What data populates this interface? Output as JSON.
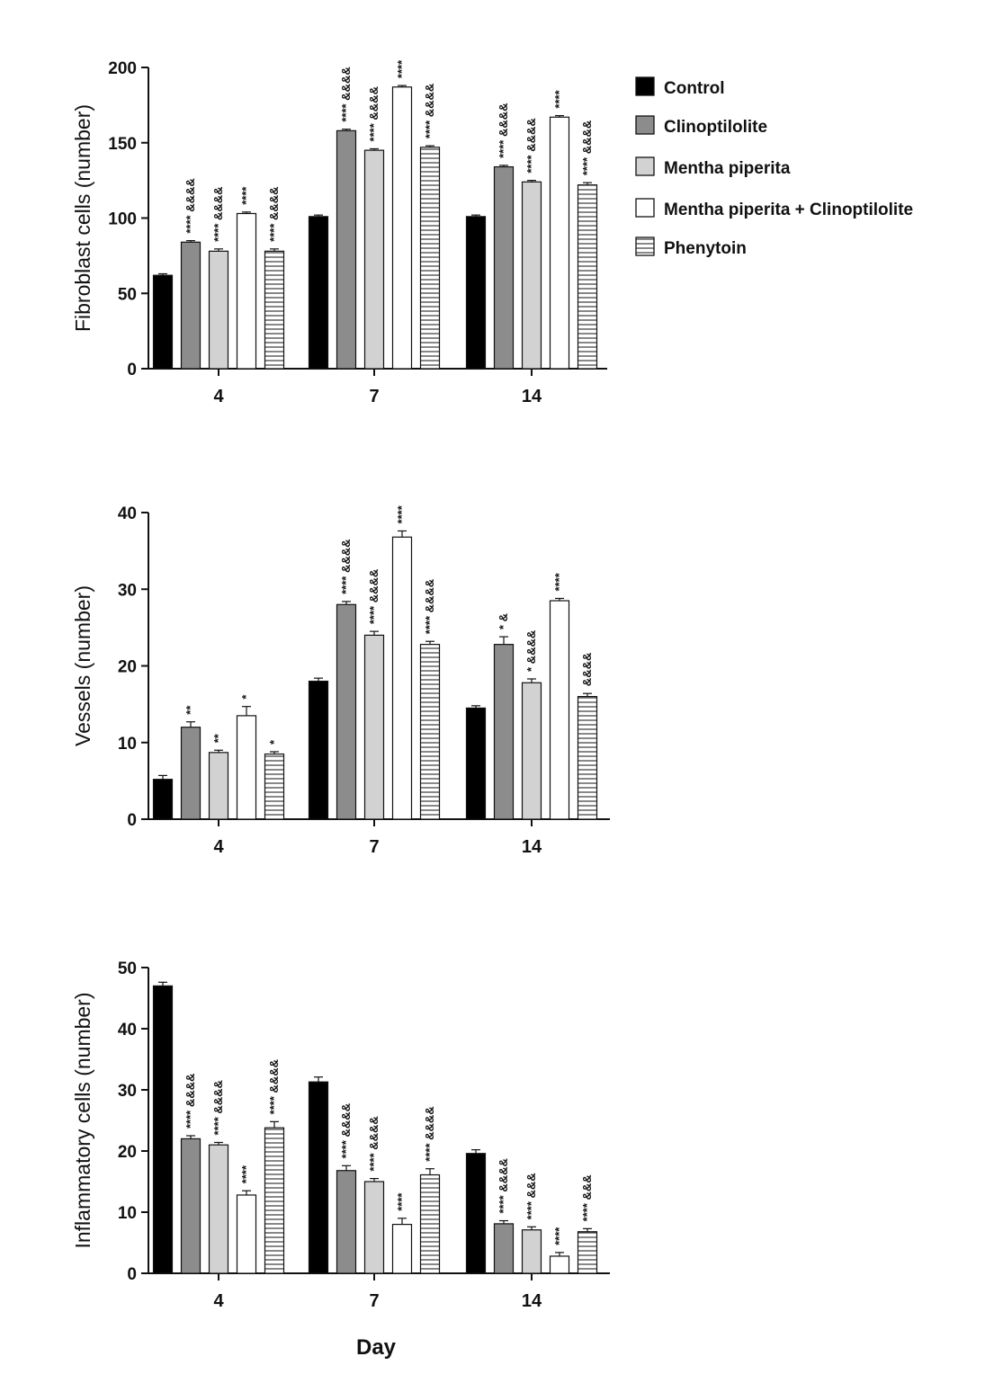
{
  "legend": [
    {
      "name": "Control",
      "fill": "#000000",
      "pattern": "solid"
    },
    {
      "name": "Clinoptilolite",
      "fill": "#8c8c8c",
      "pattern": "solid"
    },
    {
      "name": "Mentha piperita",
      "fill": "#d2d2d2",
      "pattern": "solid"
    },
    {
      "name": "Mentha piperita + Clinoptilolite",
      "fill": "#ffffff",
      "pattern": "solid"
    },
    {
      "name": "Phenytoin",
      "fill": "#ffffff",
      "pattern": "hlines"
    }
  ],
  "x_axis_title": "Day",
  "chart_data": [
    {
      "type": "bar",
      "ylabel": "Fibroblast cells (number)",
      "xlabel": "",
      "categories": [
        "4",
        "7",
        "14"
      ],
      "ylim": [
        0,
        200
      ],
      "yticks": [
        0,
        50,
        100,
        150,
        200
      ],
      "series": [
        {
          "name": "Control",
          "values": [
            62,
            101,
            101
          ],
          "errors": [
            1,
            1,
            1
          ]
        },
        {
          "name": "Clinoptilolite",
          "values": [
            84,
            158,
            134
          ],
          "errors": [
            1,
            1,
            1
          ]
        },
        {
          "name": "Mentha piperita",
          "values": [
            78,
            145,
            124
          ],
          "errors": [
            1.5,
            1,
            1
          ]
        },
        {
          "name": "Mentha piperita + Clinoptilolite",
          "values": [
            103,
            187,
            167
          ],
          "errors": [
            1,
            1,
            1
          ]
        },
        {
          "name": "Phenytoin",
          "values": [
            78,
            147,
            122
          ],
          "errors": [
            1.5,
            1,
            1.5
          ]
        }
      ],
      "annotations": [
        [
          "",
          "",
          ""
        ],
        [
          "****  &&&&",
          "****  &&&&",
          "****  &&&&"
        ],
        [
          "****  &&&&",
          "****  &&&&",
          "****  &&&&"
        ],
        [
          "****",
          "****",
          "****"
        ],
        [
          "****  &&&&",
          "****  &&&&",
          "****  &&&&"
        ]
      ]
    },
    {
      "type": "bar",
      "ylabel": "Vessels (number)",
      "xlabel": "",
      "categories": [
        "4",
        "7",
        "14"
      ],
      "ylim": [
        0,
        40
      ],
      "yticks": [
        0,
        10,
        20,
        30,
        40
      ],
      "series": [
        {
          "name": "Control",
          "values": [
            5.2,
            18,
            14.5
          ],
          "errors": [
            0.5,
            0.4,
            0.3
          ]
        },
        {
          "name": "Clinoptilolite",
          "values": [
            12,
            28,
            22.8
          ],
          "errors": [
            0.7,
            0.4,
            1
          ]
        },
        {
          "name": "Mentha piperita",
          "values": [
            8.7,
            24,
            17.8
          ],
          "errors": [
            0.3,
            0.5,
            0.5
          ]
        },
        {
          "name": "Mentha piperita + Clinoptilolite",
          "values": [
            13.5,
            36.8,
            28.5
          ],
          "errors": [
            1.2,
            0.8,
            0.3
          ]
        },
        {
          "name": "Phenytoin",
          "values": [
            8.5,
            22.8,
            16
          ],
          "errors": [
            0.3,
            0.4,
            0.4
          ]
        }
      ],
      "annotations": [
        [
          "",
          "",
          ""
        ],
        [
          "**",
          "****  &&&&",
          "*  &"
        ],
        [
          "**",
          "****  &&&&",
          "*  &&&&"
        ],
        [
          "*",
          "****",
          "****"
        ],
        [
          "*",
          "****  &&&&",
          "&&&&"
        ]
      ]
    },
    {
      "type": "bar",
      "ylabel": "Inflammatory cells (number)",
      "xlabel": "Day",
      "categories": [
        "4",
        "7",
        "14"
      ],
      "ylim": [
        0,
        50
      ],
      "yticks": [
        0,
        10,
        20,
        30,
        40,
        50
      ],
      "series": [
        {
          "name": "Control",
          "values": [
            47,
            31.3,
            19.6
          ],
          "errors": [
            0.6,
            0.8,
            0.6
          ]
        },
        {
          "name": "Clinoptilolite",
          "values": [
            22,
            16.8,
            8.1
          ],
          "errors": [
            0.5,
            0.8,
            0.5
          ]
        },
        {
          "name": "Mentha piperita",
          "values": [
            21,
            15,
            7.1
          ],
          "errors": [
            0.4,
            0.5,
            0.5
          ]
        },
        {
          "name": "Mentha piperita + Clinoptilolite",
          "values": [
            12.8,
            8,
            2.8
          ],
          "errors": [
            0.7,
            1,
            0.6
          ]
        },
        {
          "name": "Phenytoin",
          "values": [
            23.8,
            16.1,
            6.8
          ],
          "errors": [
            1,
            1,
            0.5
          ]
        }
      ],
      "annotations": [
        [
          "",
          "",
          ""
        ],
        [
          "****  &&&&",
          "****  &&&&",
          "****  &&&&"
        ],
        [
          "****  &&&&",
          "****  &&&&",
          "****  &&&"
        ],
        [
          "****",
          "****",
          "****"
        ],
        [
          "****  &&&&",
          "****  &&&&",
          "****  &&&"
        ]
      ]
    }
  ]
}
